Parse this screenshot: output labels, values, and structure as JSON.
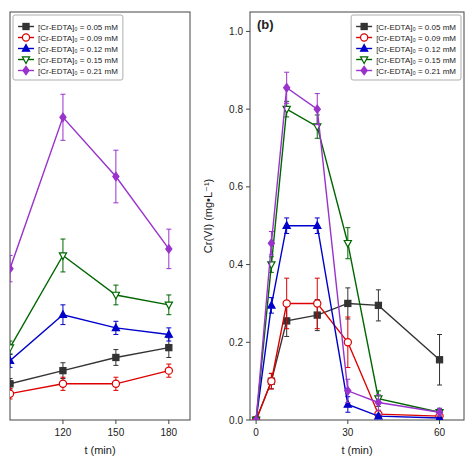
{
  "chart_data": [
    {
      "type": "line",
      "x_label": "t (min)",
      "x": [
        90,
        120,
        150,
        180
      ],
      "xlim": [
        90,
        192
      ],
      "ylim": [
        0.0,
        0.62
      ],
      "xticks": [
        120,
        150,
        180
      ],
      "tick_labels": "x",
      "grid": false,
      "legend": "upper left",
      "series": [
        {
          "name": "[Cr-EDTA]₀ = 0.05 mM",
          "color": "#333333",
          "marker": "square",
          "values": [
            0.055,
            0.075,
            0.095,
            0.11
          ],
          "errors": [
            0.008,
            0.012,
            0.012,
            0.015
          ]
        },
        {
          "name": "[Cr-EDTA]₀ = 0.09 mM",
          "color": "#dd0000",
          "marker": "circle-open",
          "values": [
            0.04,
            0.055,
            0.055,
            0.075
          ],
          "errors": [
            0.008,
            0.01,
            0.01,
            0.01
          ]
        },
        {
          "name": "[Cr-EDTA]₀ = 0.12 mM",
          "color": "#0000cc",
          "marker": "triangle-up",
          "values": [
            0.09,
            0.16,
            0.14,
            0.13
          ],
          "errors": [
            0.01,
            0.015,
            0.01,
            0.01
          ]
        },
        {
          "name": "[Cr-EDTA]₀ = 0.15 mM",
          "color": "#006600",
          "marker": "triangle-down-open",
          "values": [
            0.11,
            0.25,
            0.19,
            0.175
          ],
          "errors": [
            0.01,
            0.025,
            0.015,
            0.015
          ]
        },
        {
          "name": "[Cr-EDTA]₀ = 0.21 mM",
          "color": "#9933cc",
          "marker": "diamond",
          "values": [
            0.23,
            0.46,
            0.37,
            0.26
          ],
          "errors": [
            0.02,
            0.035,
            0.04,
            0.03
          ]
        }
      ]
    },
    {
      "type": "line",
      "x_label": "t (min)",
      "y_label": "Cr(VI) (mg•L⁻¹)",
      "annotations": [
        "(b)"
      ],
      "x": [
        0,
        5,
        10,
        20,
        30,
        40,
        60
      ],
      "xlim": [
        -2,
        68
      ],
      "ylim": [
        0.0,
        1.05
      ],
      "xticks": [
        0,
        30,
        60
      ],
      "yticks": [
        {
          "value": 0.0,
          "label": "0.0"
        },
        0.2,
        0.4,
        0.6,
        0.8,
        {
          "value": 1.0,
          "label": "1.0"
        }
      ],
      "grid": false,
      "legend": "upper right",
      "series": [
        {
          "name": "[Cr-EDTA]₀ = 0.05 mM",
          "color": "#333333",
          "marker": "square",
          "values": [
            0.0,
            0.1,
            0.255,
            0.27,
            0.3,
            0.295,
            0.155
          ],
          "errors": [
            0.0,
            0.02,
            0.04,
            0.04,
            0.04,
            0.04,
            0.065
          ]
        },
        {
          "name": "[Cr-EDTA]₀ = 0.09 mM",
          "color": "#dd0000",
          "marker": "circle-open",
          "values": [
            0.0,
            0.1,
            0.3,
            0.3,
            0.2,
            0.015,
            0.01
          ],
          "errors": [
            0.0,
            0.02,
            0.065,
            0.065,
            0.065,
            0.01,
            0.005
          ]
        },
        {
          "name": "[Cr-EDTA]₀ = 0.12 mM",
          "color": "#0000cc",
          "marker": "triangle-up",
          "values": [
            0.0,
            0.295,
            0.5,
            0.5,
            0.04,
            0.01,
            0.005
          ],
          "errors": [
            0.0,
            0.02,
            0.02,
            0.02,
            0.02,
            0.005,
            0.002
          ]
        },
        {
          "name": "[Cr-EDTA]₀ = 0.15 mM",
          "color": "#006600",
          "marker": "triangle-down-open",
          "values": [
            0.0,
            0.4,
            0.8,
            0.755,
            0.455,
            0.055,
            0.02
          ],
          "errors": [
            0.0,
            0.02,
            0.02,
            0.03,
            0.04,
            0.02,
            0.01
          ]
        },
        {
          "name": "[Cr-EDTA]₀ = 0.21 mM",
          "color": "#9933cc",
          "marker": "diamond",
          "values": [
            0.0,
            0.455,
            0.855,
            0.8,
            0.075,
            0.045,
            0.02
          ],
          "errors": [
            0.0,
            0.03,
            0.04,
            0.04,
            0.03,
            0.02,
            0.01
          ]
        }
      ]
    }
  ]
}
